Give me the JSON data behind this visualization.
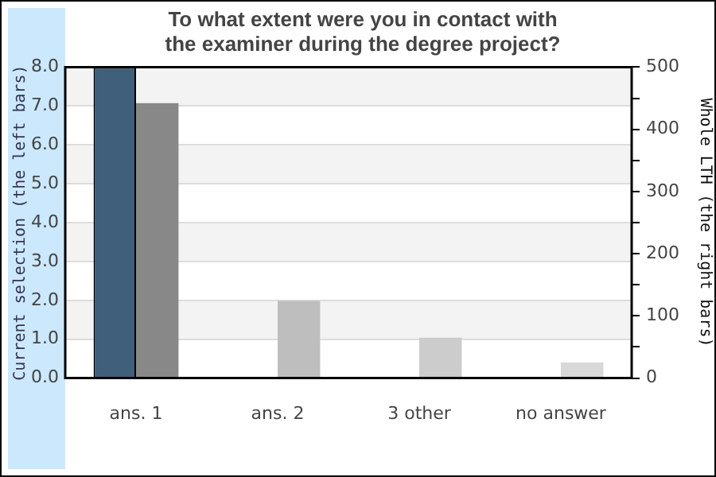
{
  "chart_data": {
    "type": "bar",
    "title": "To what extent were you in contact with the examiner during the degree project?",
    "categories": [
      "ans. 1",
      "ans. 2",
      "3 other",
      "no answer"
    ],
    "ylabel": "Current selection (the left bars)",
    "y2label": "Whole LTH (the right bars)",
    "series": [
      {
        "color": "#3f5f7a",
        "values": [
          8.0,
          0,
          0,
          0
        ]
      },
      {
        "colors": [
          "#888888",
          "#bebebe",
          "#cccccc",
          "#d8d8d8"
        ],
        "values": [
          442,
          124,
          65,
          25
        ],
        "axis": "y2"
      }
    ],
    "ylim": [
      0,
      8
    ],
    "yticks": [
      {
        "value": 0,
        "label": "0.0"
      },
      {
        "value": 1,
        "label": "1.0"
      },
      {
        "value": 2,
        "label": "2.0"
      },
      {
        "value": 3,
        "label": "3.0"
      },
      {
        "value": 4,
        "label": "4.0"
      },
      {
        "value": 5,
        "label": "5.0"
      },
      {
        "value": 6,
        "label": "6.0"
      },
      {
        "value": 7,
        "label": "7.0"
      },
      {
        "value": 8,
        "label": "8.0"
      }
    ],
    "y2lim": [
      0,
      500
    ],
    "y2ticks": [
      0,
      {
        "value": 50,
        "label": null
      },
      100,
      {
        "value": 150,
        "label": null
      },
      200,
      {
        "value": 250,
        "label": null
      },
      300,
      {
        "value": 350,
        "label": null
      },
      400,
      {
        "value": 450,
        "label": null
      },
      500
    ],
    "grid": "y",
    "legend": false
  }
}
